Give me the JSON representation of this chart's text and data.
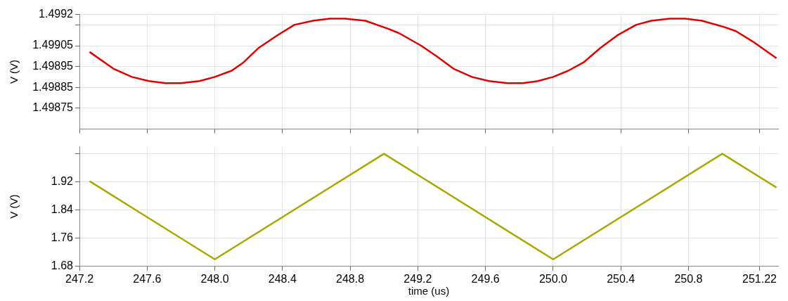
{
  "chart_data": [
    {
      "type": "line",
      "ylabel": "V (V)",
      "x": [
        247.26,
        247.4,
        247.51,
        247.61,
        247.71,
        247.8,
        247.91,
        248.0,
        248.1,
        248.17,
        248.26,
        248.37,
        248.47,
        248.58,
        248.68,
        248.77,
        248.89,
        249.03,
        249.09,
        249.22,
        249.31,
        249.41,
        249.52,
        249.62,
        249.73,
        249.82,
        249.91,
        250.0,
        250.09,
        250.18,
        250.28,
        250.38,
        250.49,
        250.58,
        250.69,
        250.78,
        250.88,
        251.01,
        251.08,
        251.18,
        251.32
      ],
      "series": [
        {
          "color": "#e00000",
          "values": [
            1.49902,
            1.49894,
            1.4989,
            1.49888,
            1.49887,
            1.49887,
            1.49888,
            1.4989,
            1.49893,
            1.49897,
            1.49904,
            1.4991,
            1.49915,
            1.49917,
            1.49918,
            1.49918,
            1.49917,
            1.49913,
            1.49911,
            1.49905,
            1.499,
            1.49894,
            1.4989,
            1.49888,
            1.49887,
            1.49887,
            1.49888,
            1.4989,
            1.49893,
            1.49897,
            1.49904,
            1.4991,
            1.49915,
            1.49917,
            1.49918,
            1.49918,
            1.49917,
            1.49914,
            1.49912,
            1.49907,
            1.49899
          ]
        }
      ],
      "xlim": [
        247.2,
        251.33
      ],
      "xticks": [
        247.2,
        247.6,
        248,
        248.4,
        248.8,
        249.2,
        249.6,
        250,
        250.4,
        250.8,
        251.22
      ],
      "ylim": [
        1.49865,
        1.4992
      ],
      "yticks": [
        1.49875,
        1.49885,
        1.49895,
        1.49905,
        {
          "value": 1.49915,
          "label": null
        },
        1.4992
      ],
      "tick_labels": "y",
      "grid": true,
      "legend": false,
      "marker": "none",
      "line_style": "solid"
    },
    {
      "type": "line",
      "xlabel": "time (us)",
      "ylabel": "V (V)",
      "x": [
        247.26,
        248.0,
        249.0,
        250.0,
        251.0,
        251.32
      ],
      "series": [
        {
          "color": "#a8a800",
          "values": [
            1.922,
            1.7,
            2.0,
            1.7,
            2.0,
            1.904
          ]
        }
      ],
      "xlim": [
        247.2,
        251.33
      ],
      "xticks": [
        247.2,
        247.6,
        {
          "value": 248,
          "label": "248.0"
        },
        248.4,
        248.8,
        249.2,
        249.6,
        {
          "value": 250,
          "label": "250.0"
        },
        250.4,
        250.8,
        251.22
      ],
      "ylim": [
        1.68,
        2.02
      ],
      "yticks": [
        1.68,
        1.76,
        1.84,
        1.92,
        {
          "value": 2.0,
          "label": null
        }
      ],
      "grid": true,
      "legend": false,
      "marker": "none",
      "line_style": "solid"
    }
  ]
}
